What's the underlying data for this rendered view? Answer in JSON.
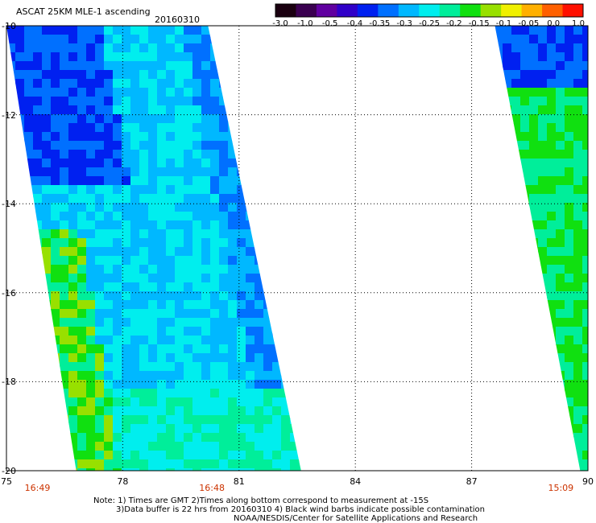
{
  "header": {
    "title": "ASCAT 25KM MLE-1 ascending",
    "date": "20160310"
  },
  "colorbar": {
    "labels": [
      "-3.0",
      "-1.0",
      "-0.5",
      "-0.4",
      "-0.35",
      "-0.3",
      "-0.25",
      "-0.2",
      "-0.15",
      "-0.1",
      "-0.05",
      "0.0",
      "1.0"
    ],
    "colors": [
      "#1a0010",
      "#3a0050",
      "#6000a0",
      "#3000c8",
      "#0020f0",
      "#0070ff",
      "#00b8ff",
      "#00eeee",
      "#00ee9a",
      "#10e010",
      "#98e000",
      "#f0f000",
      "#ffb000",
      "#ff6000",
      "#ff1000"
    ]
  },
  "map": {
    "lon_ticks": [
      75,
      78,
      81,
      84,
      87,
      90
    ],
    "lat_ticks": [
      -10,
      -12,
      -14,
      -16,
      -18,
      -20
    ],
    "lon_labels": [
      "75",
      "78",
      "81",
      "84",
      "87",
      "90"
    ],
    "lat_labels": [
      "-10",
      "-12",
      "-14",
      "-16",
      "-18",
      "-20"
    ],
    "lon_range": [
      75,
      90
    ],
    "lat_range": [
      -20,
      -10
    ],
    "grid": true,
    "pass_times": [
      {
        "label": "16:49",
        "lon": 75.8
      },
      {
        "label": "16:48",
        "lon": 80.3
      },
      {
        "label": "15:09",
        "lon": 89.3
      }
    ],
    "swaths": [
      {
        "lat_top": -10,
        "lat_bottom": -20,
        "lon_left_top": 75.0,
        "lon_left_bottom": 76.8,
        "lon_right_top": 80.2,
        "lon_right_bottom": 82.6
      },
      {
        "lat_top": -10,
        "lat_bottom": -20,
        "lon_left_top": 87.6,
        "lon_left_bottom": 89.8,
        "lon_right_top": 90.0,
        "lon_right_bottom": 90.0
      }
    ]
  },
  "notes": {
    "line1": "Note: 1) Times are GMT 2)Times along bottom correspond to measurement at -15S",
    "line2": "3)Data buffer is 22 hrs from 20160310 4) Black wind barbs indicate possible contamination",
    "line3": "NOAA/NESDIS/Center for Satellite Applications and Research"
  }
}
